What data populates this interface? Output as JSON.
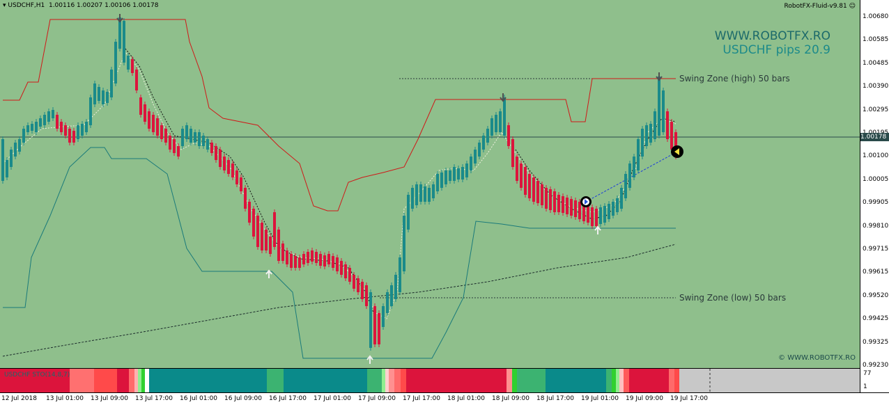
{
  "window": {
    "title_symbol": "USDCHF,H1",
    "title_ohlc": "1.00116 1.00207 1.00106 1.00178",
    "expert": "RobotFX-Fluid-v9.81"
  },
  "brand": {
    "site": "WWW.ROBOTFX.RO",
    "pips": "USDCHF pips 20.9",
    "copyright": "© WWW.ROBOTFX.RO"
  },
  "zones": {
    "high": "Swing Zone (high) 50 bars",
    "low": "Swing Zone (low) 50 bars"
  },
  "indicator": {
    "name": "USDCHF STO(14,8,7)",
    "level_high": "77",
    "level_low": "1"
  },
  "price_axis": [
    "1.00680",
    "1.00585",
    "1.00485",
    "1.00390",
    "1.00295",
    "1.00195",
    "1.00100",
    "1.00005",
    "0.99905",
    "0.99810",
    "0.99715",
    "0.99615",
    "0.99520",
    "0.99425",
    "0.99325",
    "0.99230"
  ],
  "current_price": "1.00178",
  "time_axis": [
    "12 Jul 2018",
    "13 Jul 01:00",
    "13 Jul 09:00",
    "13 Jul 17:00",
    "16 Jul 01:00",
    "16 Jul 09:00",
    "16 Jul 17:00",
    "17 Jul 01:00",
    "17 Jul 09:00",
    "17 Jul 17:00",
    "18 Jul 01:00",
    "18 Jul 09:00",
    "18 Jul 17:00",
    "19 Jul 01:00",
    "19 Jul 09:00",
    "19 Jul 17:00"
  ],
  "colors": {
    "background": "#8fbf8c",
    "bull": "#1a8a8a",
    "bear": "#dc143c",
    "upper_band": "#d01818",
    "lower_band": "#1a7a7a",
    "sto_bull": "#0a8a8a",
    "sto_bear": "#dc143c"
  }
}
